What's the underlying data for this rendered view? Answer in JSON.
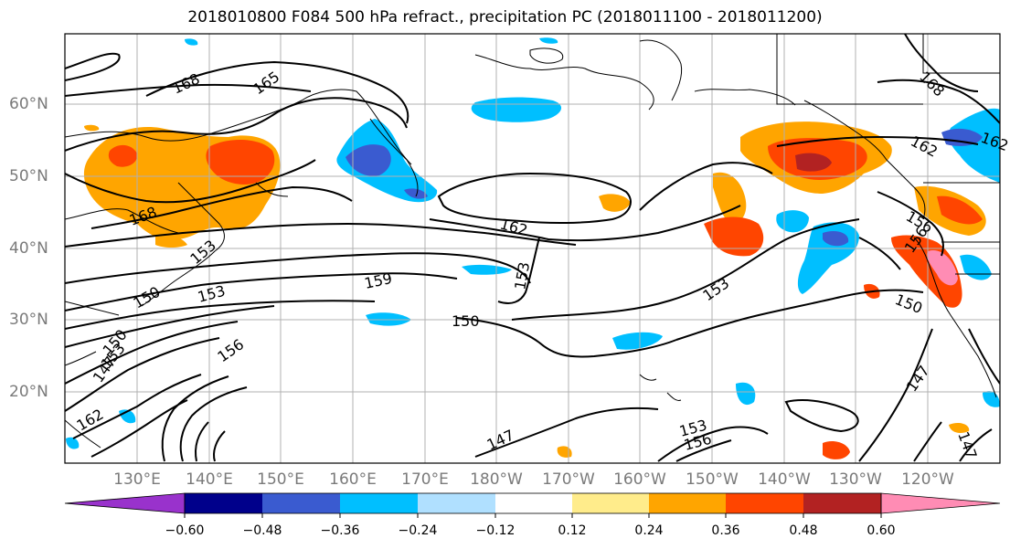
{
  "title": "2018010800 F084 500 hPa refract., precipitation PC (2018011100 - 2018011200)",
  "lat_labels": [
    "60°N",
    "50°N",
    "40°N",
    "30°N",
    "20°N"
  ],
  "lon_labels": [
    "130°E",
    "140°E",
    "150°E",
    "160°E",
    "170°E",
    "180°W",
    "170°W",
    "160°W",
    "150°W",
    "140°W",
    "130°W",
    "120°W"
  ],
  "contour_labels": [
    "168",
    "165",
    "168",
    "168",
    "162",
    "159",
    "153",
    "153",
    "150",
    "153",
    "150",
    "156",
    "150",
    "147",
    "147",
    "153",
    "156",
    "162",
    "162",
    "156",
    "156",
    "147",
    "147",
    "150",
    "153",
    "153",
    "162"
  ],
  "colorbar": {
    "colors": [
      "#9932cc",
      "#00008b",
      "#3a5bd0",
      "#00bfff",
      "#b0e0ff",
      "#ffffff",
      "#ffec8b",
      "#ffa500",
      "#ff4500",
      "#b22222",
      "#ff8cb4"
    ],
    "ticks": [
      "−0.60",
      "−0.48",
      "−0.36",
      "−0.24",
      "−0.12",
      "0.12",
      "0.24",
      "0.36",
      "0.48",
      "0.60"
    ]
  }
}
